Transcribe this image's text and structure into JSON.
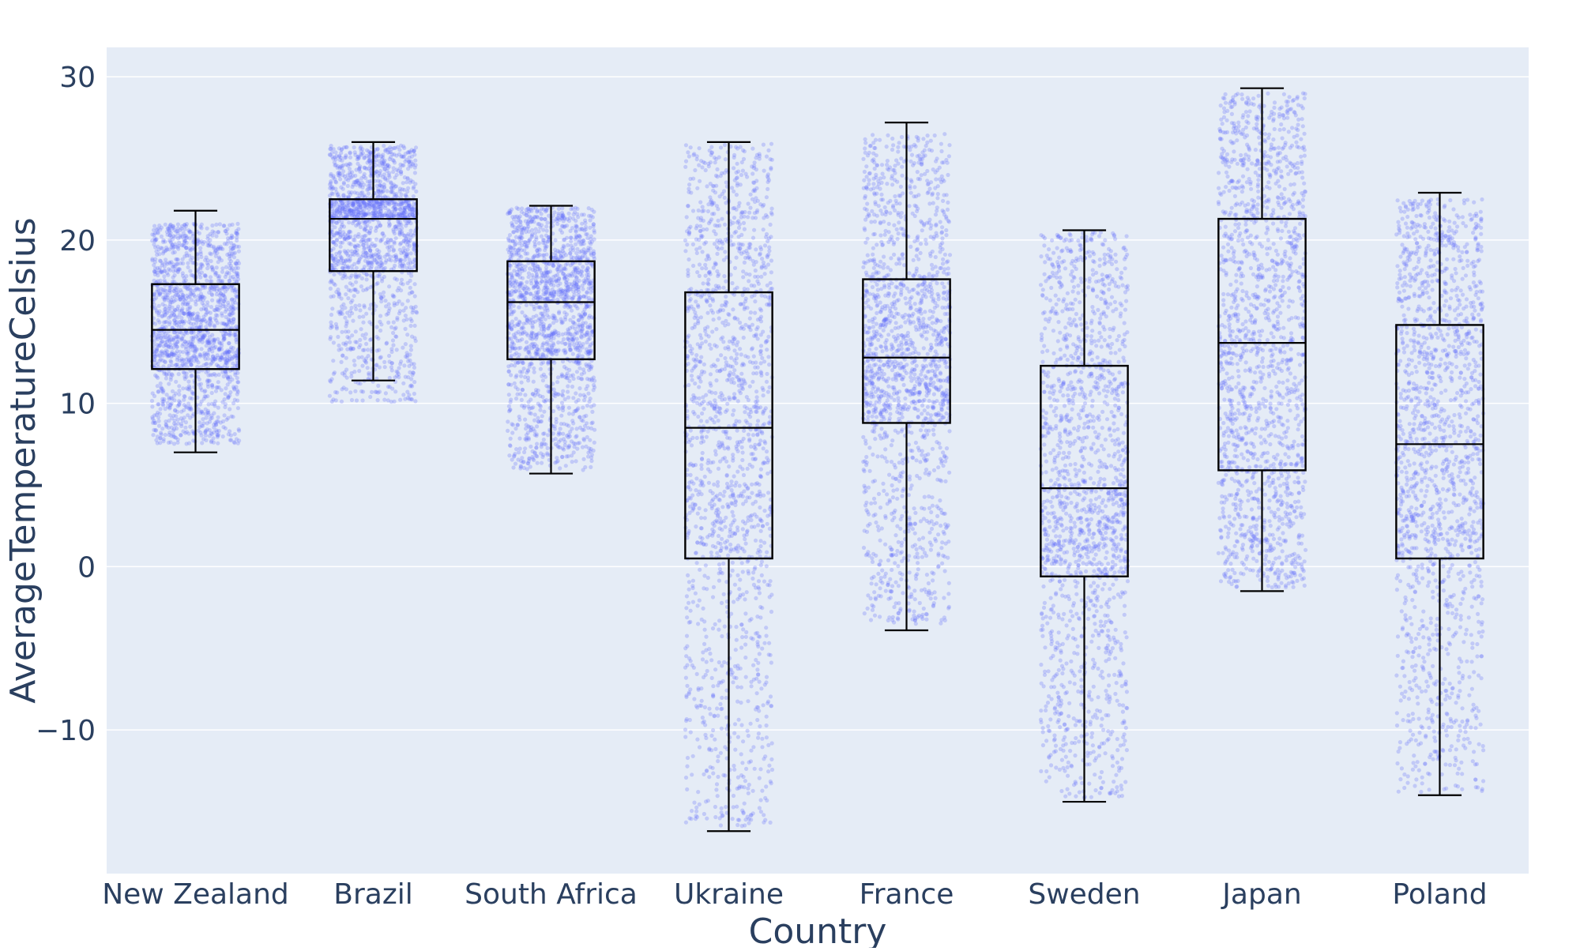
{
  "chart_data": {
    "type": "box",
    "title": "",
    "xlabel": "Country",
    "ylabel": "AverageTemperatureCelsius",
    "ylim": [
      -18.8,
      31.8
    ],
    "yticks": [
      -10,
      0,
      10,
      20,
      30
    ],
    "ytick_labels": [
      "−10",
      "0",
      "10",
      "20",
      "30"
    ],
    "grid": true,
    "points": "all",
    "colors": {
      "plot_bg": "#e5ecf6",
      "grid": "#ffffff",
      "points": "#636efa",
      "box_line": "#000000",
      "text": "#2a3f5f"
    },
    "categories": [
      "New Zealand",
      "Brazil",
      "South Africa",
      "Ukraine",
      "France",
      "Sweden",
      "Japan",
      "Poland"
    ],
    "boxes": [
      {
        "category": "New Zealand",
        "lower_whisker": 7.0,
        "q1": 12.1,
        "median": 14.5,
        "q3": 17.3,
        "upper_whisker": 21.8,
        "point_min": 7.5,
        "point_max": 21.0
      },
      {
        "category": "Brazil",
        "lower_whisker": 11.4,
        "q1": 18.1,
        "median": 21.3,
        "q3": 22.5,
        "upper_whisker": 26.0,
        "point_min": 10.1,
        "point_max": 25.8
      },
      {
        "category": "South Africa",
        "lower_whisker": 5.7,
        "q1": 12.7,
        "median": 16.2,
        "q3": 18.7,
        "upper_whisker": 22.1,
        "point_min": 5.9,
        "point_max": 22.0
      },
      {
        "category": "Ukraine",
        "lower_whisker": -16.2,
        "q1": 0.5,
        "median": 8.5,
        "q3": 16.8,
        "upper_whisker": 26.0,
        "point_min": -15.9,
        "point_max": 25.9
      },
      {
        "category": "France",
        "lower_whisker": -3.9,
        "q1": 8.8,
        "median": 12.8,
        "q3": 17.6,
        "upper_whisker": 27.2,
        "point_min": -3.5,
        "point_max": 26.5
      },
      {
        "category": "Sweden",
        "lower_whisker": -14.4,
        "q1": -0.6,
        "median": 4.8,
        "q3": 12.3,
        "upper_whisker": 20.6,
        "point_min": -14.2,
        "point_max": 20.5
      },
      {
        "category": "Japan",
        "lower_whisker": -1.5,
        "q1": 5.9,
        "median": 13.7,
        "q3": 21.3,
        "upper_whisker": 29.3,
        "point_min": -1.3,
        "point_max": 29.0
      },
      {
        "category": "Poland",
        "lower_whisker": -14.0,
        "q1": 0.5,
        "median": 7.5,
        "q3": 14.8,
        "upper_whisker": 22.9,
        "point_min": -13.8,
        "point_max": 22.5
      }
    ]
  }
}
